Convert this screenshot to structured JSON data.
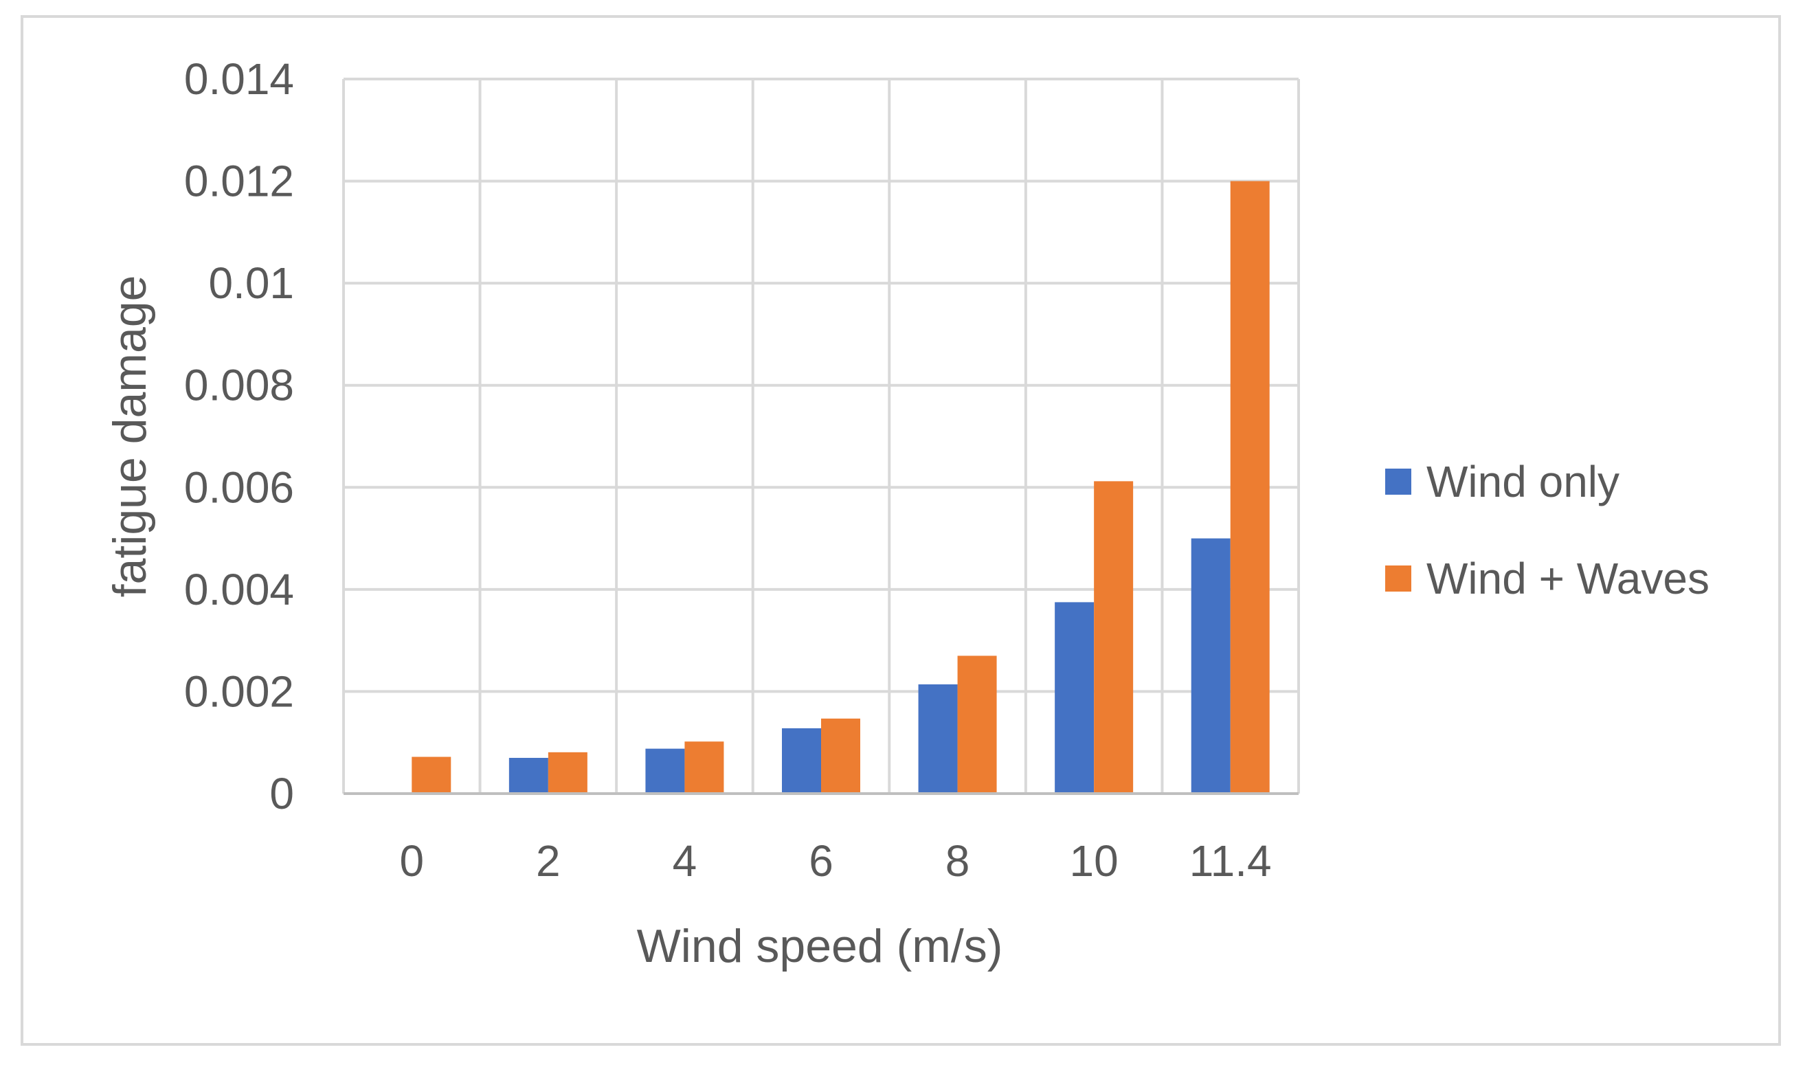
{
  "chart_data": {
    "type": "bar",
    "title": "",
    "xlabel": "Wind speed (m/s)",
    "ylabel": "fatigue damage",
    "categories": [
      "0",
      "2",
      "4",
      "6",
      "8",
      "10",
      "11.4"
    ],
    "series": [
      {
        "name": "Wind only",
        "color": "#4472c4",
        "values": [
          0,
          0.0007,
          0.00088,
          0.00128,
          0.00214,
          0.00375,
          0.005
        ]
      },
      {
        "name": "Wind + Waves",
        "color": "#ed7d31",
        "values": [
          0.00072,
          0.00081,
          0.00102,
          0.00147,
          0.0027,
          0.00612,
          0.012
        ]
      }
    ],
    "ylim": [
      0,
      0.014
    ],
    "yticks": [
      "0",
      "0.002",
      "0.004",
      "0.006",
      "0.008",
      "0.01",
      "0.012",
      "0.014"
    ],
    "grid": true,
    "legend_position": "right",
    "grid_color": "#d9d9d9",
    "axis_color": "#bfbfbf"
  }
}
